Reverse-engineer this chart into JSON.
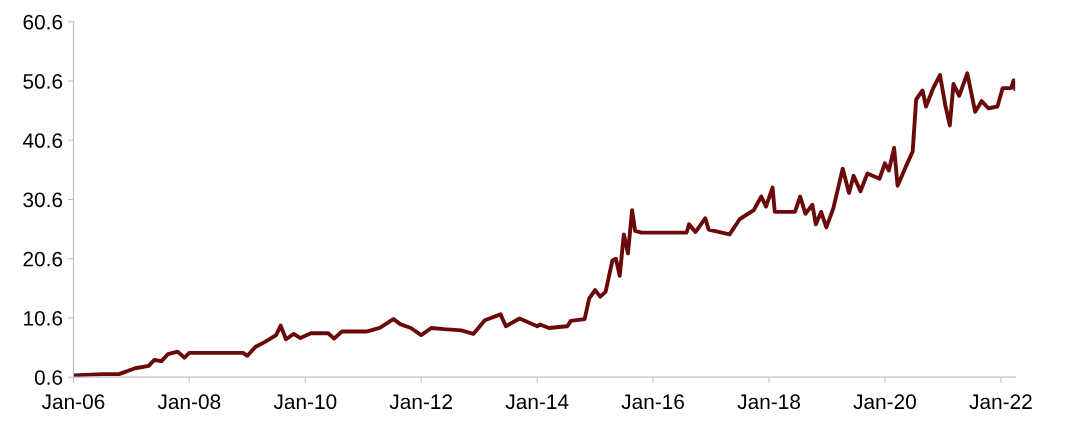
{
  "chart_data": {
    "type": "line",
    "x": [
      "2006-01-01",
      "2006-07-01",
      "2006-10-15",
      "2007-01-25",
      "2007-04-20",
      "2007-05-25",
      "2007-07-10",
      "2007-08-20",
      "2007-10-20",
      "2007-12-01",
      "2008-01-01",
      "2008-12-05",
      "2009-01-01",
      "2009-02-20",
      "2009-04-25",
      "2009-07-01",
      "2009-07-30",
      "2009-09-01",
      "2009-10-20",
      "2009-12-01",
      "2010-02-05",
      "2010-05-25",
      "2010-07-01",
      "2010-08-20",
      "2011-01-20",
      "2011-04-15",
      "2011-07-10",
      "2011-08-25",
      "2011-10-28",
      "2012-01-01",
      "2012-03-05",
      "2012-05-25",
      "2012-09-10",
      "2012-11-25",
      "2013-02-05",
      "2013-05-15",
      "2013-06-18",
      "2013-09-12",
      "2014-01-01",
      "2014-01-20",
      "2014-03-15",
      "2014-07-10",
      "2014-08-01",
      "2014-10-27",
      "2014-11-25",
      "2015-01-01",
      "2015-02-02",
      "2015-03-08",
      "2015-04-20",
      "2015-05-12",
      "2015-06-05",
      "2015-07-01",
      "2015-07-27",
      "2015-08-22",
      "2015-09-10",
      "2015-10-20",
      "2016-07-30",
      "2016-08-15",
      "2016-09-24",
      "2016-11-25",
      "2016-12-17",
      "2017-04-27",
      "2017-07-01",
      "2017-09-27",
      "2017-11-13",
      "2017-12-13",
      "2018-01-23",
      "2018-02-06",
      "2018-06-13",
      "2018-07-16",
      "2018-08-18",
      "2018-10-01",
      "2018-10-23",
      "2018-11-25",
      "2018-12-28",
      "2019-02-10",
      "2019-04-10",
      "2019-05-20",
      "2019-06-18",
      "2019-07-31",
      "2019-09-13",
      "2019-11-28",
      "2020-01-01",
      "2020-01-26",
      "2020-02-28",
      "2020-03-21",
      "2020-05-11",
      "2020-06-24",
      "2020-07-16",
      "2020-08-25",
      "2020-09-16",
      "2020-10-30",
      "2020-12-13",
      "2021-01-15",
      "2021-02-13",
      "2021-03-08",
      "2021-04-13",
      "2021-06-03",
      "2021-07-23",
      "2021-09-01",
      "2021-10-15",
      "2021-12-10",
      "2022-01-12",
      "2022-03-07",
      "2022-03-22",
      "2022-04-01"
    ],
    "series": [
      {
        "color": "#6b0a0a",
        "values": [
          0.9,
          1.1,
          1.1,
          2.1,
          2.5,
          3.5,
          3.3,
          4.5,
          4.9,
          3.9,
          4.7,
          4.7,
          4.2,
          5.7,
          6.6,
          7.7,
          9.3,
          7.0,
          7.9,
          7.2,
          8.0,
          8.0,
          7.1,
          8.3,
          8.3,
          8.9,
          10.4,
          9.5,
          8.9,
          7.7,
          8.9,
          8.7,
          8.5,
          7.9,
          10.2,
          11.2,
          9.2,
          10.5,
          9.2,
          9.5,
          8.9,
          9.2,
          10.1,
          10.4,
          13.9,
          15.3,
          14.2,
          15.0,
          20.3,
          20.6,
          17.7,
          24.7,
          21.5,
          28.8,
          25.3,
          25.0,
          25.0,
          26.4,
          25.1,
          27.4,
          25.5,
          24.7,
          27.3,
          28.8,
          31.1,
          29.4,
          32.6,
          28.5,
          28.5,
          31.1,
          28.2,
          29.7,
          26.4,
          28.5,
          25.9,
          29.1,
          35.8,
          31.7,
          34.6,
          32.0,
          35.0,
          34.1,
          36.7,
          35.5,
          39.3,
          32.9,
          36.1,
          38.7,
          47.5,
          49.0,
          46.3,
          49.3,
          51.6,
          46.6,
          43.1,
          50.1,
          48.1,
          51.9,
          45.4,
          47.2,
          46.0,
          46.3,
          49.4,
          49.4,
          50.7,
          49.3
        ]
      }
    ],
    "xlim": [
      "2006-01-01",
      "2022-04-01"
    ],
    "xticks": [
      {
        "value": "2006-01-01",
        "label": "Jan-06"
      },
      {
        "value": "2008-01-01",
        "label": "Jan-08"
      },
      {
        "value": "2010-01-01",
        "label": "Jan-10"
      },
      {
        "value": "2012-01-01",
        "label": "Jan-12"
      },
      {
        "value": "2014-01-01",
        "label": "Jan-14"
      },
      {
        "value": "2016-01-01",
        "label": "Jan-16"
      },
      {
        "value": "2018-01-01",
        "label": "Jan-18"
      },
      {
        "value": "2020-01-01",
        "label": "Jan-20"
      },
      {
        "value": "2022-01-01",
        "label": "Jan-22"
      }
    ],
    "ylim": [
      0.6,
      60.6
    ],
    "yticks": [
      0.6,
      10.6,
      20.6,
      30.6,
      40.6,
      50.6,
      60.6
    ],
    "grid": false,
    "legend": false,
    "marker": "none",
    "line_style": "solid"
  }
}
